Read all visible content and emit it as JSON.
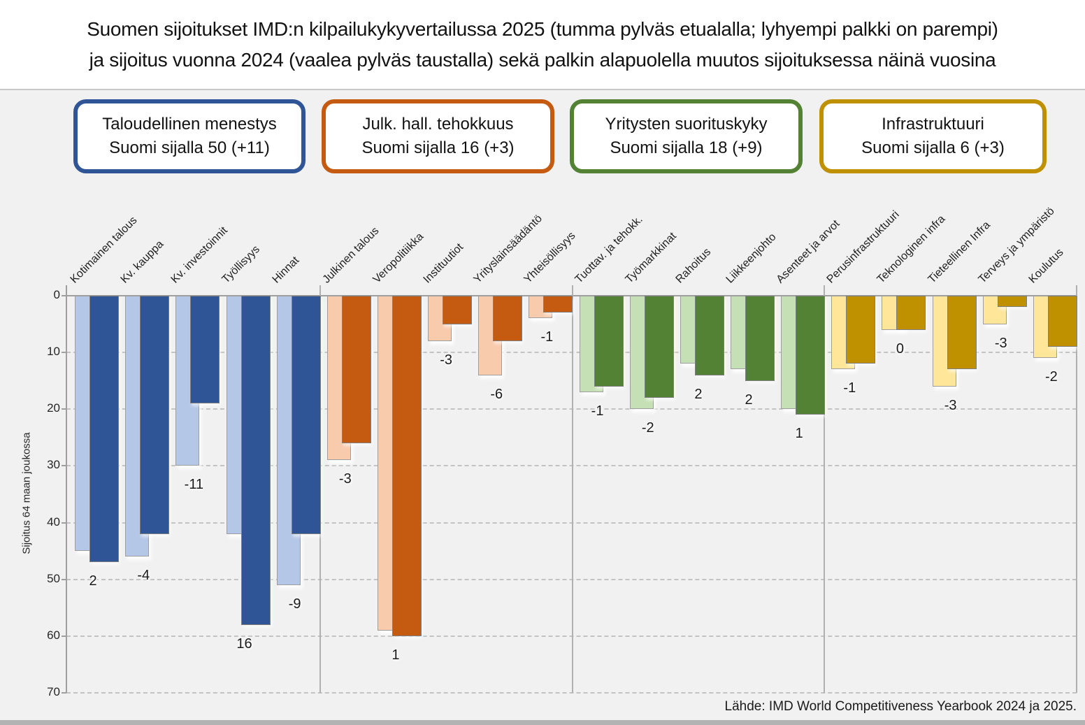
{
  "title": {
    "line1": "Suomen sijoitukset IMD:n kilpailukykyvertailussa 2025 (tumma pylväs etualalla; lyhyempi palkki on parempi)",
    "line2": "ja sijoitus vuonna 2024 (vaalea pylväs taustalla) sekä palkin alapuolella muutos sijoituksessa näinä vuosina"
  },
  "chart_data": {
    "type": "bar",
    "orientation": "vertical-downward",
    "lower_is_better": true,
    "light_series": "2024",
    "dark_series": "2025",
    "ylabel": "Sijoitus 64 maan joukossa",
    "ylim": [
      0,
      70
    ],
    "yticks": [
      0,
      10,
      20,
      30,
      40,
      50,
      60,
      70
    ],
    "grid": true,
    "groups": [
      {
        "id": "taloudellinen-menestys",
        "box_line1": "Taloudellinen menestys",
        "box_line2": "Suomi sijalla 50 (+11)",
        "overall_rank_2025": 50,
        "overall_change": "+11",
        "color_dark": "#2F5597",
        "color_light": "#B4C7E7",
        "categories": [
          "Kotimainen talous",
          "Kv. kauppa",
          "Kv. investoinnit",
          "Työllisyys",
          "Hinnat"
        ],
        "rank_2024": [
          45,
          46,
          30,
          42,
          51
        ],
        "rank_2025": [
          47,
          42,
          19,
          58,
          42
        ],
        "change_labels": [
          "2",
          "-4",
          "-11",
          "16",
          "-9"
        ]
      },
      {
        "id": "julkisen-hallinnon-tehokkuus",
        "box_line1": "Julk. hall. tehokkuus",
        "box_line2": "Suomi sijalla 16 (+3)",
        "overall_rank_2025": 16,
        "overall_change": "+3",
        "color_dark": "#C55A11",
        "color_light": "#F8CBAD",
        "categories": [
          "Julkinen talous",
          "Veropolitiikka",
          "Instituutiot",
          "Yrityslainsäädäntö",
          "Yhteisöllisyys"
        ],
        "rank_2024": [
          29,
          59,
          8,
          14,
          4
        ],
        "rank_2025": [
          26,
          60,
          5,
          8,
          3
        ],
        "change_labels": [
          "-3",
          "1",
          "-3",
          "-6",
          "-1"
        ]
      },
      {
        "id": "yritysten-suorituskyky",
        "box_line1": "Yritysten suorituskyky",
        "box_line2": "Suomi sijalla 18 (+9)",
        "overall_rank_2025": 18,
        "overall_change": "+9",
        "color_dark": "#548235",
        "color_light": "#C5E0B4",
        "categories": [
          "Tuottav. ja tehokk.",
          "Työmarkkinat",
          "Rahoitus",
          "Liikkeenjohto",
          "Asenteet ja arvot"
        ],
        "rank_2024": [
          17,
          20,
          12,
          13,
          20
        ],
        "rank_2025": [
          16,
          18,
          14,
          15,
          21
        ],
        "change_labels": [
          "-1",
          "-2",
          "2",
          "2",
          "1"
        ]
      },
      {
        "id": "infrastruktuuri",
        "box_line1": "Infrastruktuuri",
        "box_line2": "Suomi sijalla 6 (+3)",
        "overall_rank_2025": 6,
        "overall_change": "+3",
        "color_dark": "#BF9000",
        "color_light": "#FFE699",
        "categories": [
          "Perusinfrastruktuuri",
          "Teknologinen infra",
          "Tieteellinen Infra",
          "Terveys ja ympäristö",
          "Koulutus"
        ],
        "rank_2024": [
          13,
          6,
          16,
          5,
          11
        ],
        "rank_2025": [
          12,
          6,
          13,
          2,
          9
        ],
        "change_labels": [
          "-1",
          "0",
          "-3",
          "-3",
          "-2"
        ]
      }
    ],
    "source": "Lähde: IMD World Competitiveness Yearbook 2024 ja 2025."
  }
}
